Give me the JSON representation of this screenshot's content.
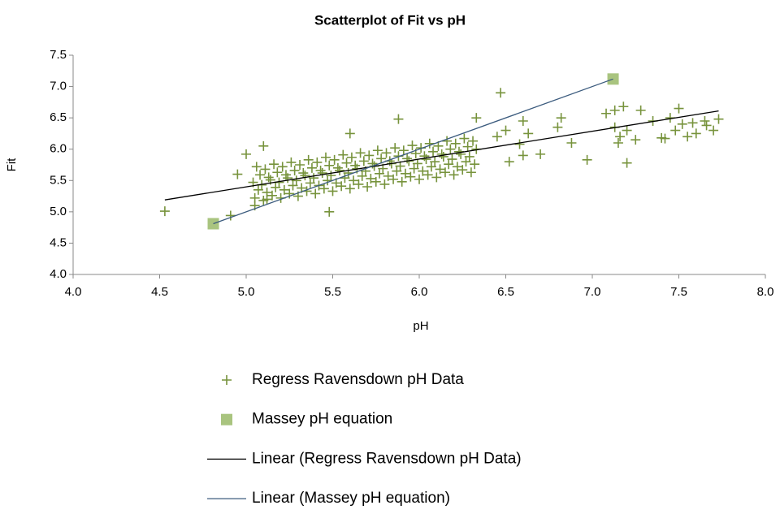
{
  "chart_data": {
    "type": "scatter",
    "title": "Scatterplot of Fit vs pH",
    "x_label": "pH",
    "y_label": "Fit",
    "xlim": [
      4,
      8
    ],
    "ylim": [
      4,
      7.5
    ],
    "xticks": [
      {
        "value": 4,
        "label": "4.0"
      },
      4.5,
      {
        "value": 5,
        "label": "5.0"
      },
      5.5,
      {
        "value": 6,
        "label": "6.0"
      },
      6.5,
      {
        "value": 7,
        "label": "7.0"
      },
      7.5,
      {
        "value": 8,
        "label": "8.0"
      }
    ],
    "yticks": [
      {
        "value": 4,
        "label": "4.0"
      },
      4.5,
      {
        "value": 5,
        "label": "5.0"
      },
      5.5,
      {
        "value": 6,
        "label": "6.0"
      },
      6.5,
      {
        "value": 7,
        "label": "7.0"
      },
      7.5
    ],
    "grid": false,
    "legend": "bottom",
    "series": [
      {
        "name": "Regress Ravensdown pH Data",
        "marker": "plus",
        "color": "#77933c",
        "x": [
          5.05,
          5.07,
          5.04,
          5.08,
          5.06,
          5.1,
          5.12,
          5.09,
          5.13,
          5.11,
          5.15,
          5.17,
          5.14,
          5.18,
          5.16,
          5.2,
          5.22,
          5.19,
          5.23,
          5.21,
          5.25,
          5.27,
          5.24,
          5.28,
          5.26,
          5.3,
          5.32,
          5.29,
          5.33,
          5.31,
          5.35,
          5.37,
          5.34,
          5.38,
          5.36,
          5.4,
          5.42,
          5.39,
          5.43,
          5.41,
          5.45,
          5.47,
          5.44,
          5.48,
          5.46,
          5.5,
          5.52,
          5.49,
          5.53,
          5.51,
          5.55,
          5.57,
          5.54,
          5.58,
          5.56,
          5.6,
          5.62,
          5.59,
          5.63,
          5.61,
          5.65,
          5.67,
          5.64,
          5.68,
          5.66,
          5.7,
          5.72,
          5.69,
          5.73,
          5.71,
          5.75,
          5.77,
          5.74,
          5.78,
          5.76,
          5.8,
          5.82,
          5.79,
          5.83,
          5.81,
          5.85,
          5.87,
          5.84,
          5.88,
          5.86,
          5.9,
          5.92,
          5.89,
          5.93,
          5.91,
          5.95,
          5.97,
          5.94,
          5.98,
          5.96,
          6.0,
          6.02,
          5.99,
          6.03,
          6.01,
          6.05,
          6.07,
          6.04,
          6.08,
          6.06,
          6.1,
          6.12,
          6.09,
          6.13,
          6.11,
          6.15,
          6.17,
          6.14,
          6.18,
          6.16,
          6.2,
          6.22,
          6.19,
          6.23,
          6.21,
          6.25,
          6.27,
          6.24,
          6.28,
          6.26,
          6.3,
          6.32,
          6.29,
          6.33,
          6.31,
          6.47,
          6.6,
          6.63,
          6.8,
          6.82,
          6.88,
          6.97,
          7.08,
          7.13,
          7.18,
          7.13,
          7.16,
          7.2,
          7.15,
          7.25,
          7.28,
          7.35,
          7.4,
          7.42,
          7.45,
          7.5,
          7.52,
          7.48,
          7.55,
          7.6,
          7.58,
          7.65,
          7.7,
          7.73,
          7.66,
          7.2,
          4.53,
          4.91,
          4.95,
          5.0,
          5.1,
          5.05,
          5.12,
          5.48,
          5.6,
          5.88,
          6.33,
          6.45,
          6.5,
          6.52,
          6.6,
          6.7,
          6.58
        ],
        "y": [
          5.22,
          5.35,
          5.47,
          5.59,
          5.72,
          5.18,
          5.31,
          5.43,
          5.55,
          5.68,
          5.26,
          5.39,
          5.51,
          5.63,
          5.76,
          5.22,
          5.35,
          5.47,
          5.59,
          5.72,
          5.29,
          5.42,
          5.54,
          5.66,
          5.79,
          5.25,
          5.38,
          5.5,
          5.62,
          5.75,
          5.33,
          5.46,
          5.58,
          5.7,
          5.83,
          5.29,
          5.42,
          5.54,
          5.66,
          5.79,
          5.37,
          5.5,
          5.62,
          5.74,
          5.87,
          5.33,
          5.46,
          5.58,
          5.7,
          5.83,
          5.41,
          5.54,
          5.66,
          5.78,
          5.91,
          5.37,
          5.5,
          5.62,
          5.74,
          5.87,
          5.44,
          5.57,
          5.69,
          5.81,
          5.94,
          5.4,
          5.53,
          5.65,
          5.77,
          5.9,
          5.48,
          5.61,
          5.73,
          5.85,
          5.98,
          5.44,
          5.57,
          5.69,
          5.81,
          5.94,
          5.52,
          5.65,
          5.77,
          5.89,
          6.02,
          5.48,
          5.61,
          5.73,
          5.85,
          5.98,
          5.56,
          5.69,
          5.81,
          5.93,
          6.06,
          5.52,
          5.65,
          5.77,
          5.89,
          6.02,
          5.59,
          5.72,
          5.84,
          5.96,
          6.09,
          5.55,
          5.68,
          5.8,
          5.92,
          6.05,
          5.63,
          5.76,
          5.88,
          6.0,
          6.13,
          5.59,
          5.72,
          5.84,
          5.96,
          6.09,
          5.67,
          5.8,
          5.92,
          6.04,
          6.17,
          5.63,
          5.76,
          5.88,
          6.0,
          6.13,
          6.9,
          6.45,
          6.25,
          6.35,
          6.5,
          6.1,
          5.83,
          6.57,
          6.62,
          6.68,
          6.35,
          6.2,
          5.78,
          6.1,
          6.15,
          6.62,
          6.45,
          6.18,
          6.17,
          6.5,
          6.65,
          6.4,
          6.3,
          6.2,
          6.25,
          6.42,
          6.45,
          6.3,
          6.48,
          6.38,
          6.3,
          5.01,
          4.94,
          5.6,
          5.92,
          6.05,
          5.1,
          5.2,
          5.0,
          6.25,
          6.48,
          6.5,
          6.2,
          6.3,
          5.8,
          5.9,
          5.92,
          6.08
        ]
      },
      {
        "name": "Massey pH equation",
        "marker": "square",
        "color": "#a9c47f",
        "x": [
          4.81,
          7.12
        ],
        "y": [
          4.81,
          7.12
        ]
      },
      {
        "name": "Linear (Regress Ravensdown pH Data)",
        "marker": "line",
        "color": "#000000",
        "x": [
          4.53,
          7.73
        ],
        "y": [
          5.19,
          6.61
        ]
      },
      {
        "name": "Linear (Massey pH equation)",
        "marker": "line",
        "color": "#3b5b7e",
        "x": [
          4.81,
          7.12
        ],
        "y": [
          4.81,
          7.12
        ]
      }
    ]
  }
}
